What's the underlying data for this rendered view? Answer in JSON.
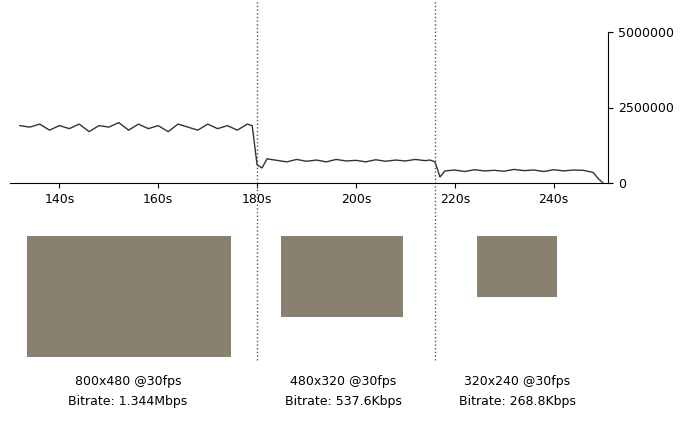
{
  "chart_data": {
    "type": "line",
    "x": [
      132,
      134,
      136,
      138,
      140,
      142,
      144,
      146,
      148,
      150,
      152,
      154,
      156,
      158,
      160,
      162,
      164,
      166,
      168,
      170,
      172,
      174,
      176,
      178,
      179,
      180,
      181,
      182,
      184,
      186,
      188,
      190,
      192,
      194,
      196,
      198,
      200,
      202,
      204,
      206,
      208,
      210,
      212,
      214,
      215,
      216,
      217,
      218,
      220,
      222,
      224,
      226,
      228,
      230,
      232,
      234,
      236,
      238,
      240,
      242,
      244,
      246,
      248,
      249,
      250
    ],
    "series": [
      {
        "name": "Bitrate",
        "color": "#333333",
        "values": [
          1900000,
          1850000,
          1950000,
          1750000,
          1900000,
          1800000,
          1950000,
          1700000,
          1900000,
          1850000,
          2000000,
          1750000,
          1950000,
          1800000,
          1900000,
          1700000,
          1950000,
          1850000,
          1750000,
          1950000,
          1800000,
          1900000,
          1750000,
          1950000,
          1900000,
          600000,
          500000,
          800000,
          750000,
          700000,
          780000,
          720000,
          760000,
          700000,
          780000,
          730000,
          750000,
          700000,
          770000,
          720000,
          760000,
          730000,
          780000,
          740000,
          760000,
          700000,
          200000,
          400000,
          430000,
          380000,
          440000,
          400000,
          420000,
          390000,
          450000,
          410000,
          430000,
          380000,
          440000,
          400000,
          430000,
          420000,
          350000,
          150000,
          0
        ]
      }
    ],
    "xlim": [
      130,
      251
    ],
    "xticks": [
      {
        "value": 140,
        "label": "140s"
      },
      {
        "value": 160,
        "label": "160s"
      },
      {
        "value": 180,
        "label": "180s"
      },
      {
        "value": 200,
        "label": "200s"
      },
      {
        "value": 220,
        "label": "220s"
      },
      {
        "value": 240,
        "label": "240s"
      }
    ],
    "ylim": [
      0,
      5000000
    ],
    "yticks": [
      0,
      2500000,
      5000000
    ],
    "vlines": [
      180,
      216
    ],
    "captions": [
      [
        "800x480 @30fps",
        "Bitrate: 1.344Mbps"
      ],
      [
        "480x320 @30fps",
        "Bitrate: 537.6Kbps"
      ],
      [
        "320x240 @30fps",
        "Bitrate: 268.8Kbps"
      ]
    ],
    "grid": false
  }
}
